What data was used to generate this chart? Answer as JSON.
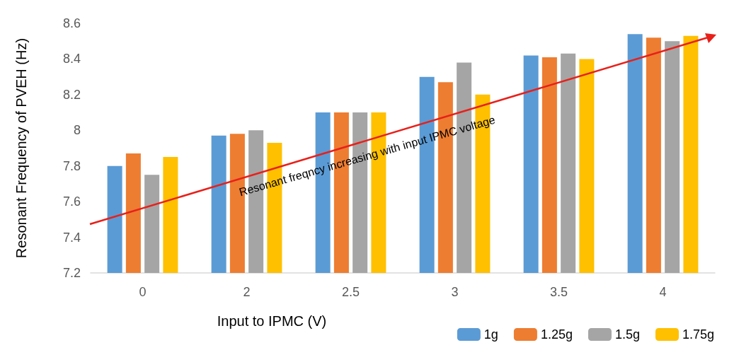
{
  "chart_data": {
    "type": "bar",
    "xlabel": "Input to IPMC (V)",
    "ylabel": "Resonant Frequency of PVEH (Hz)",
    "categories": [
      "0",
      "2",
      "2.5",
      "3",
      "3.5",
      "4"
    ],
    "series": [
      {
        "name": "1g",
        "color": "#5b9bd5",
        "values": [
          7.8,
          7.97,
          8.1,
          8.3,
          8.42,
          8.54
        ]
      },
      {
        "name": "1.25g",
        "color": "#ed7d31",
        "values": [
          7.87,
          7.98,
          8.1,
          8.27,
          8.41,
          8.52
        ]
      },
      {
        "name": "1.5g",
        "color": "#a5a5a5",
        "values": [
          7.75,
          8.0,
          8.1,
          8.38,
          8.43,
          8.5
        ]
      },
      {
        "name": "1.75g",
        "color": "#ffc000",
        "values": [
          7.85,
          7.93,
          8.1,
          8.2,
          8.4,
          8.53
        ]
      }
    ],
    "ylim": [
      7.2,
      8.6
    ],
    "yticks": [
      7.2,
      7.4,
      7.6,
      7.8,
      8,
      8.2,
      8.4,
      8.6
    ],
    "grid": false,
    "legend": "bottom right",
    "annotations": [
      "Resonant freqncy increasing with input IPMC voltage"
    ]
  }
}
